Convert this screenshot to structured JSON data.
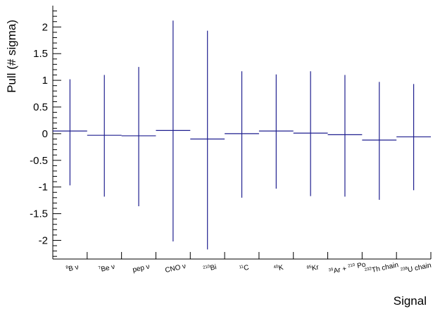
{
  "chart_data": {
    "type": "scatter",
    "title": "",
    "xlabel": "Signal",
    "ylabel": "Pull (# sigma)",
    "ylim": [
      -2.35,
      2.4
    ],
    "yticks": [
      "2",
      "1.5",
      "1",
      "0.5",
      "0",
      "-0.5",
      "-1",
      "-1.5",
      "-2"
    ],
    "grid": false,
    "legend": "none",
    "line_color": "#1f1f8f",
    "categories": [
      {
        "base": "B ν",
        "sup": "8"
      },
      {
        "base": "Be ν",
        "sup": "7"
      },
      {
        "base": "pep ν",
        "sup": ""
      },
      {
        "base": "CNO ν",
        "sup": ""
      },
      {
        "base": "Bi",
        "sup": "210"
      },
      {
        "base": "C",
        "sup": "11"
      },
      {
        "base": "K",
        "sup": "40"
      },
      {
        "base": "Kr",
        "sup": "85"
      },
      {
        "base": "Ar + Po",
        "sup": "39",
        "sup2": "210"
      },
      {
        "base": "Th chain",
        "sup": "232"
      },
      {
        "base": "U chain",
        "sup": "238"
      }
    ],
    "series": [
      {
        "values": [
          0.05,
          -0.03,
          -0.04,
          0.06,
          -0.1,
          0.0,
          0.05,
          0.01,
          -0.02,
          -0.12,
          -0.06
        ],
        "err_low": [
          -0.97,
          -1.18,
          -1.36,
          -2.02,
          -2.17,
          -1.2,
          -1.03,
          -1.17,
          -1.18,
          -1.24,
          -1.06
        ],
        "err_high": [
          1.02,
          1.1,
          1.25,
          2.12,
          1.93,
          1.17,
          1.11,
          1.17,
          1.1,
          0.97,
          0.93
        ]
      }
    ]
  }
}
